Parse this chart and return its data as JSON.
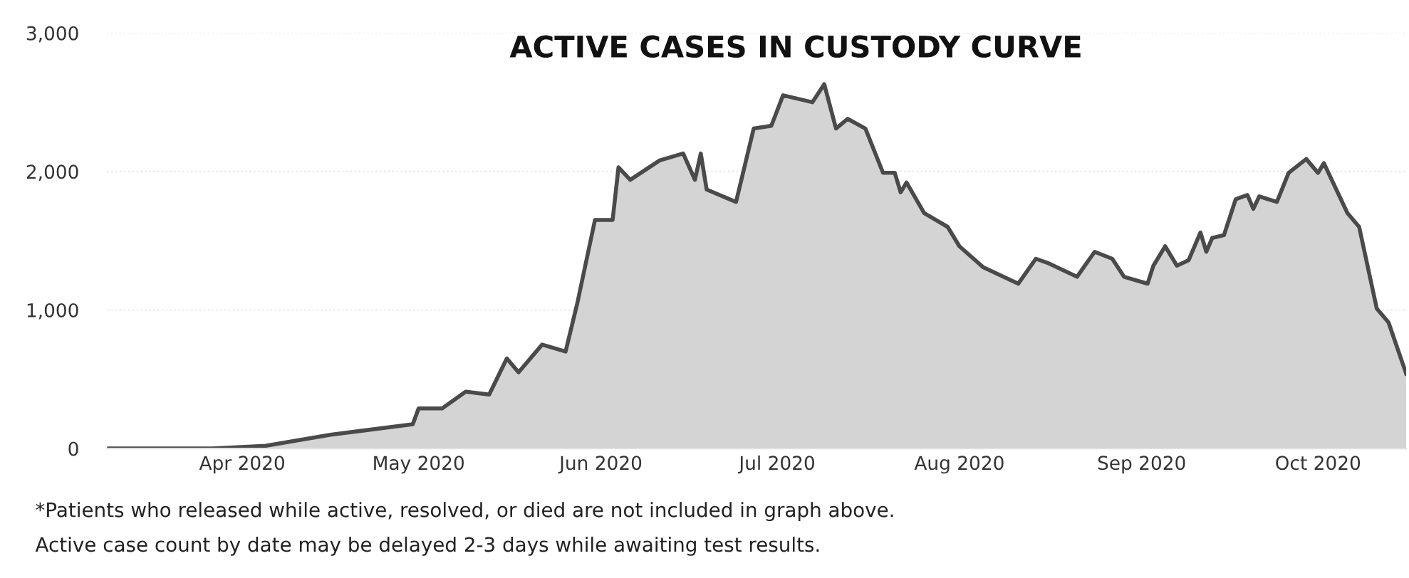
{
  "chart_data": {
    "type": "area",
    "title": "ACTIVE CASES IN CUSTODY CURVE",
    "annotations": [
      "*Patients who released while active, resolved, or died are not included in graph above.",
      "Active case count by date may be delayed 2-3 days while awaiting test results."
    ],
    "x": [
      "2020-03-09",
      "2020-03-27",
      "2020-04-05",
      "2020-04-16",
      "2020-04-30",
      "2020-05-01",
      "2020-05-05",
      "2020-05-09",
      "2020-05-13",
      "2020-05-16",
      "2020-05-18",
      "2020-05-22",
      "2020-05-26",
      "2020-05-28",
      "2020-05-31",
      "2020-06-03",
      "2020-06-04",
      "2020-06-06",
      "2020-06-11",
      "2020-06-15",
      "2020-06-17",
      "2020-06-18",
      "2020-06-19",
      "2020-06-24",
      "2020-06-27",
      "2020-06-30",
      "2020-07-02",
      "2020-07-07",
      "2020-07-09",
      "2020-07-11",
      "2020-07-13",
      "2020-07-16",
      "2020-07-19",
      "2020-07-21",
      "2020-07-22",
      "2020-07-23",
      "2020-07-26",
      "2020-07-30",
      "2020-08-01",
      "2020-08-05",
      "2020-08-11",
      "2020-08-14",
      "2020-08-16",
      "2020-08-21",
      "2020-08-24",
      "2020-08-27",
      "2020-08-29",
      "2020-09-02",
      "2020-09-03",
      "2020-09-05",
      "2020-09-07",
      "2020-09-09",
      "2020-09-11",
      "2020-09-12",
      "2020-09-13",
      "2020-09-15",
      "2020-09-17",
      "2020-09-19",
      "2020-09-20",
      "2020-09-21",
      "2020-09-24",
      "2020-09-26",
      "2020-09-29",
      "2020-10-01",
      "2020-10-02",
      "2020-10-06",
      "2020-10-08",
      "2020-10-11",
      "2020-10-13",
      "2020-10-16"
    ],
    "series": [
      {
        "color": "#4a4a4a",
        "values": [
          0,
          0,
          20,
          100,
          175,
          290,
          290,
          410,
          390,
          650,
          550,
          750,
          700,
          1050,
          1650,
          1650,
          2030,
          1940,
          2080,
          2130,
          1940,
          2130,
          1870,
          1780,
          2310,
          2330,
          2550,
          2500,
          2630,
          2310,
          2380,
          2310,
          1990,
          1990,
          1850,
          1920,
          1700,
          1600,
          1460,
          1310,
          1190,
          1370,
          1340,
          1240,
          1420,
          1370,
          1240,
          1190,
          1320,
          1460,
          1320,
          1360,
          1560,
          1420,
          1520,
          1540,
          1800,
          1830,
          1730,
          1820,
          1780,
          1990,
          2090,
          1990,
          2060,
          1700,
          1600,
          1010,
          910,
          540
        ]
      }
    ],
    "xlim": [
      "2020-03-09",
      "2020-10-16"
    ],
    "xticks": [
      {
        "value": "2020-04-01",
        "label": "Apr 2020"
      },
      {
        "value": "2020-05-01",
        "label": "May 2020"
      },
      {
        "value": "2020-06-01",
        "label": "Jun 2020"
      },
      {
        "value": "2020-07-01",
        "label": "Jul 2020"
      },
      {
        "value": "2020-08-01",
        "label": "Aug 2020"
      },
      {
        "value": "2020-09-01",
        "label": "Sep 2020"
      },
      {
        "value": "2020-10-01",
        "label": "Oct 2020"
      }
    ],
    "ylim": [
      0,
      3000
    ],
    "yticks": [
      0,
      {
        "value": 1000,
        "label": "1,000"
      },
      {
        "value": 2000,
        "label": "2,000"
      },
      {
        "value": 3000,
        "label": "3,000"
      }
    ],
    "grid": "y"
  }
}
